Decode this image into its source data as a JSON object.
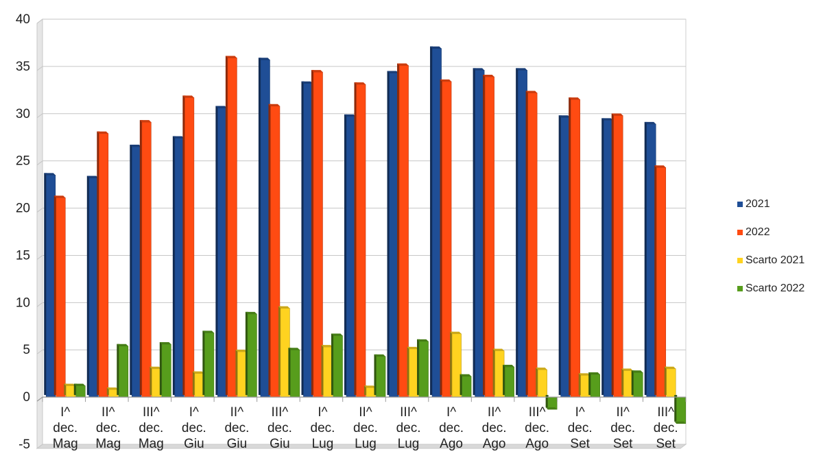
{
  "chart_data": {
    "type": "bar",
    "categories": [
      [
        "I^",
        "dec.",
        "Mag"
      ],
      [
        "II^",
        "dec.",
        "Mag"
      ],
      [
        "III^",
        "dec.",
        "Mag"
      ],
      [
        "I^",
        "dec.",
        "Giu"
      ],
      [
        "II^",
        "dec.",
        "Giu"
      ],
      [
        "III^",
        "dec.",
        "Giu"
      ],
      [
        "I^",
        "dec.",
        "Lug"
      ],
      [
        "II^",
        "dec.",
        "Lug"
      ],
      [
        "III^",
        "dec.",
        "Lug"
      ],
      [
        "I^",
        "dec.",
        "Ago"
      ],
      [
        "II^",
        "dec.",
        "Ago"
      ],
      [
        "III^",
        "dec.",
        "Ago"
      ],
      [
        "I^",
        "dec.",
        "Set"
      ],
      [
        "II^",
        "dec.",
        "Set"
      ],
      [
        "III^",
        "dec.",
        "Set"
      ]
    ],
    "series": [
      {
        "name": "2021",
        "color": "#1f4e96",
        "values": [
          23.5,
          23.2,
          26.5,
          27.4,
          30.6,
          35.7,
          33.2,
          29.7,
          34.3,
          36.9,
          34.6,
          34.6,
          29.6,
          29.3,
          28.9
        ]
      },
      {
        "name": "2022",
        "color": "#ff4b12",
        "values": [
          21.1,
          27.9,
          29.1,
          31.7,
          35.9,
          30.8,
          34.4,
          33.1,
          35.1,
          33.4,
          33.9,
          32.2,
          31.5,
          29.8,
          24.3
        ]
      },
      {
        "name": "Scarto 2021",
        "color": "#ffd320",
        "values": [
          1.2,
          0.8,
          3.0,
          2.5,
          4.8,
          9.4,
          5.3,
          1.0,
          5.1,
          6.7,
          4.9,
          2.9,
          2.3,
          2.8,
          3.0
        ]
      },
      {
        "name": "Scarto 2022",
        "color": "#579d1c",
        "values": [
          1.2,
          5.4,
          5.6,
          6.8,
          8.8,
          5.0,
          6.5,
          4.3,
          5.9,
          2.2,
          3.2,
          -1.3,
          2.4,
          2.6,
          -2.8
        ]
      }
    ],
    "ylim": [
      -5,
      40
    ],
    "yticks": [
      -5,
      0,
      5,
      10,
      15,
      20,
      25,
      30,
      35,
      40
    ],
    "grid": true,
    "legend_position": "right"
  }
}
